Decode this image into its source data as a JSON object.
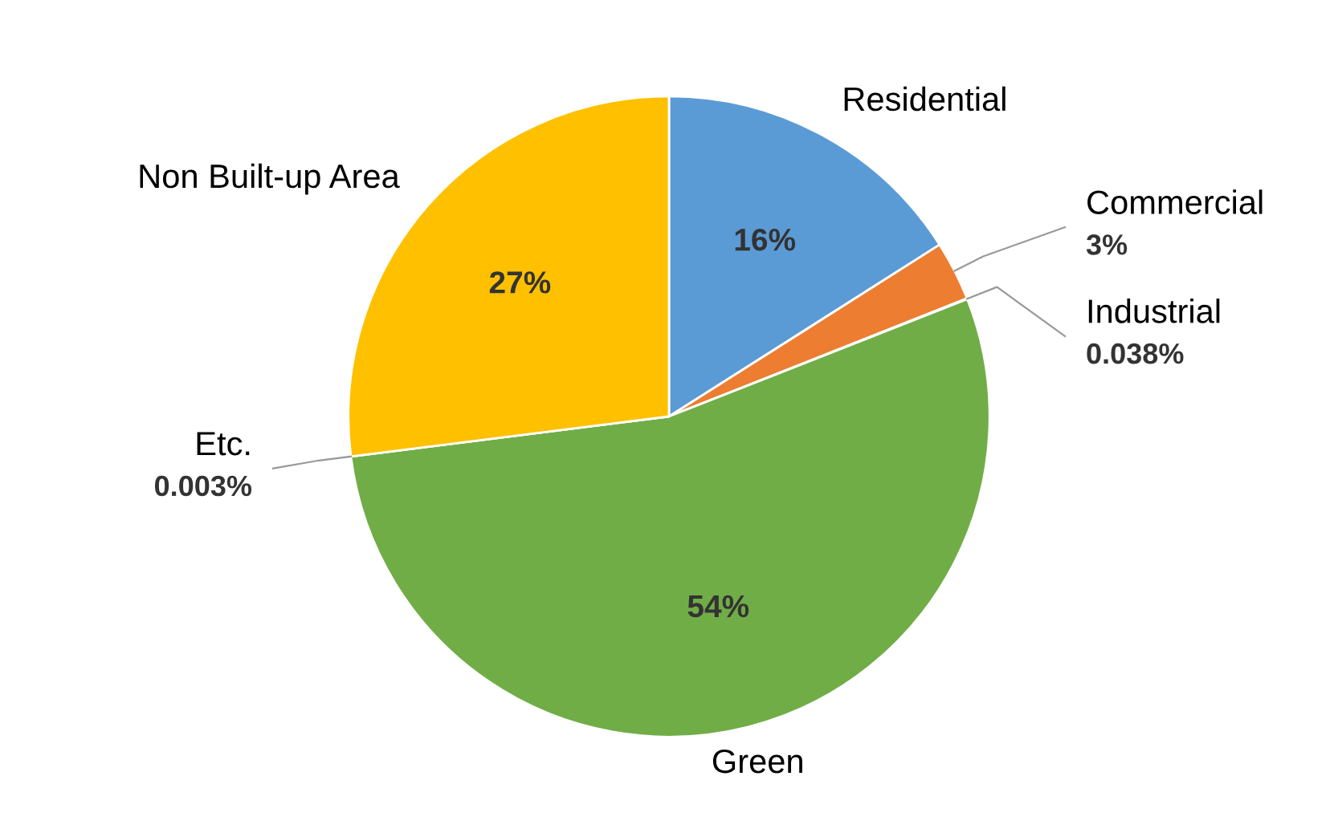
{
  "chart_data": {
    "type": "pie",
    "categories": [
      "Residential",
      "Commercial",
      "Industrial",
      "Green",
      "Etc.",
      "Non Built-up Area"
    ],
    "values": [
      16,
      3,
      0.038,
      54,
      0.003,
      27
    ],
    "value_labels": [
      "16%",
      "3%",
      "0.038%",
      "54%",
      "0.003%",
      "27%"
    ],
    "colors": [
      "#5b9bd5",
      "#ed7d31",
      "#a5a5a5",
      "#70ad47",
      "#4472c4",
      "#ffc000"
    ],
    "legend": false
  }
}
